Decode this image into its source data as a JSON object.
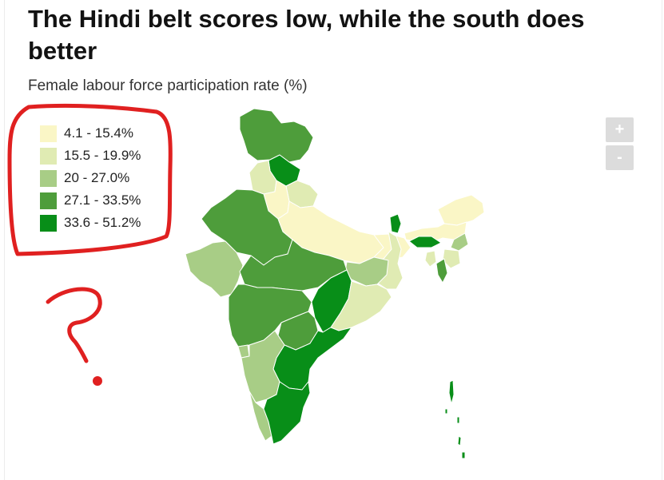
{
  "header": {
    "title": "The Hindi belt scores low, while the south does better",
    "subtitle": "Female labour force participation rate (%)"
  },
  "legend": {
    "items": [
      {
        "label": "4.1 - 15.4%",
        "color": "#faf6c6"
      },
      {
        "label": "15.5 - 19.9%",
        "color": "#e0ebb3"
      },
      {
        "label": "20 - 27.0%",
        "color": "#a8cd86"
      },
      {
        "label": "27.1 - 33.5%",
        "color": "#4e9d3b"
      },
      {
        "label": "33.6 - 51.2%",
        "color": "#088e18"
      }
    ]
  },
  "zoom": {
    "in_label": "+",
    "out_label": "-"
  },
  "map": {
    "regions": [
      {
        "name": "Jammu & Kashmir",
        "bin": 3
      },
      {
        "name": "Himachal Pradesh",
        "bin": 4
      },
      {
        "name": "Punjab",
        "bin": 1
      },
      {
        "name": "Uttarakhand",
        "bin": 1
      },
      {
        "name": "Haryana",
        "bin": 0
      },
      {
        "name": "Rajasthan",
        "bin": 3
      },
      {
        "name": "Uttar Pradesh",
        "bin": 0
      },
      {
        "name": "Bihar",
        "bin": 0
      },
      {
        "name": "Sikkim",
        "bin": 4
      },
      {
        "name": "Arunachal Pradesh",
        "bin": 0
      },
      {
        "name": "Assam",
        "bin": 0
      },
      {
        "name": "Meghalaya",
        "bin": 4
      },
      {
        "name": "Nagaland",
        "bin": 2
      },
      {
        "name": "Manipur",
        "bin": 1
      },
      {
        "name": "Mizoram",
        "bin": 3
      },
      {
        "name": "Tripura",
        "bin": 1
      },
      {
        "name": "West Bengal",
        "bin": 1
      },
      {
        "name": "Jharkhand",
        "bin": 2
      },
      {
        "name": "Gujarat",
        "bin": 2
      },
      {
        "name": "Madhya Pradesh",
        "bin": 3
      },
      {
        "name": "Chhattisgarh",
        "bin": 4
      },
      {
        "name": "Odisha",
        "bin": 1
      },
      {
        "name": "Maharashtra",
        "bin": 3
      },
      {
        "name": "Telangana",
        "bin": 3
      },
      {
        "name": "Andhra Pradesh",
        "bin": 4
      },
      {
        "name": "Goa",
        "bin": 2
      },
      {
        "name": "Karnataka",
        "bin": 2
      },
      {
        "name": "Kerala",
        "bin": 2
      },
      {
        "name": "Tamil Nadu",
        "bin": 4
      },
      {
        "name": "Andaman & Nicobar Islands",
        "bin": 4
      }
    ]
  },
  "annotation": {
    "color": "#e02020"
  }
}
